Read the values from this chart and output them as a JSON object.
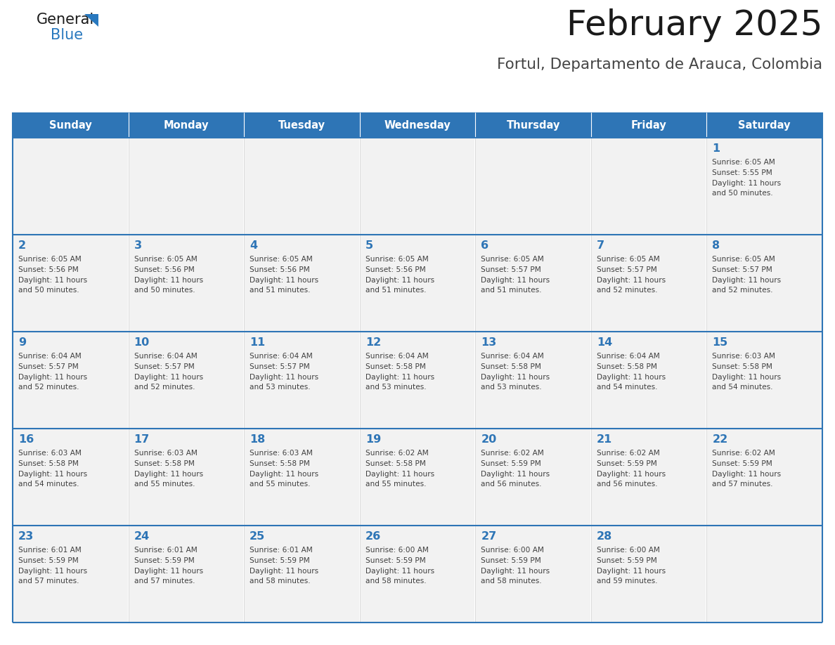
{
  "title": "February 2025",
  "subtitle": "Fortul, Departamento de Arauca, Colombia",
  "header_bg": "#2E75B6",
  "header_text_color": "#FFFFFF",
  "cell_bg": "#F2F2F2",
  "day_number_color": "#2E75B6",
  "text_color": "#404040",
  "border_color": "#2E75B6",
  "days_of_week": [
    "Sunday",
    "Monday",
    "Tuesday",
    "Wednesday",
    "Thursday",
    "Friday",
    "Saturday"
  ],
  "weeks": [
    [
      {
        "day": null,
        "info": null
      },
      {
        "day": null,
        "info": null
      },
      {
        "day": null,
        "info": null
      },
      {
        "day": null,
        "info": null
      },
      {
        "day": null,
        "info": null
      },
      {
        "day": null,
        "info": null
      },
      {
        "day": 1,
        "info": "Sunrise: 6:05 AM\nSunset: 5:55 PM\nDaylight: 11 hours\nand 50 minutes."
      }
    ],
    [
      {
        "day": 2,
        "info": "Sunrise: 6:05 AM\nSunset: 5:56 PM\nDaylight: 11 hours\nand 50 minutes."
      },
      {
        "day": 3,
        "info": "Sunrise: 6:05 AM\nSunset: 5:56 PM\nDaylight: 11 hours\nand 50 minutes."
      },
      {
        "day": 4,
        "info": "Sunrise: 6:05 AM\nSunset: 5:56 PM\nDaylight: 11 hours\nand 51 minutes."
      },
      {
        "day": 5,
        "info": "Sunrise: 6:05 AM\nSunset: 5:56 PM\nDaylight: 11 hours\nand 51 minutes."
      },
      {
        "day": 6,
        "info": "Sunrise: 6:05 AM\nSunset: 5:57 PM\nDaylight: 11 hours\nand 51 minutes."
      },
      {
        "day": 7,
        "info": "Sunrise: 6:05 AM\nSunset: 5:57 PM\nDaylight: 11 hours\nand 52 minutes."
      },
      {
        "day": 8,
        "info": "Sunrise: 6:05 AM\nSunset: 5:57 PM\nDaylight: 11 hours\nand 52 minutes."
      }
    ],
    [
      {
        "day": 9,
        "info": "Sunrise: 6:04 AM\nSunset: 5:57 PM\nDaylight: 11 hours\nand 52 minutes."
      },
      {
        "day": 10,
        "info": "Sunrise: 6:04 AM\nSunset: 5:57 PM\nDaylight: 11 hours\nand 52 minutes."
      },
      {
        "day": 11,
        "info": "Sunrise: 6:04 AM\nSunset: 5:57 PM\nDaylight: 11 hours\nand 53 minutes."
      },
      {
        "day": 12,
        "info": "Sunrise: 6:04 AM\nSunset: 5:58 PM\nDaylight: 11 hours\nand 53 minutes."
      },
      {
        "day": 13,
        "info": "Sunrise: 6:04 AM\nSunset: 5:58 PM\nDaylight: 11 hours\nand 53 minutes."
      },
      {
        "day": 14,
        "info": "Sunrise: 6:04 AM\nSunset: 5:58 PM\nDaylight: 11 hours\nand 54 minutes."
      },
      {
        "day": 15,
        "info": "Sunrise: 6:03 AM\nSunset: 5:58 PM\nDaylight: 11 hours\nand 54 minutes."
      }
    ],
    [
      {
        "day": 16,
        "info": "Sunrise: 6:03 AM\nSunset: 5:58 PM\nDaylight: 11 hours\nand 54 minutes."
      },
      {
        "day": 17,
        "info": "Sunrise: 6:03 AM\nSunset: 5:58 PM\nDaylight: 11 hours\nand 55 minutes."
      },
      {
        "day": 18,
        "info": "Sunrise: 6:03 AM\nSunset: 5:58 PM\nDaylight: 11 hours\nand 55 minutes."
      },
      {
        "day": 19,
        "info": "Sunrise: 6:02 AM\nSunset: 5:58 PM\nDaylight: 11 hours\nand 55 minutes."
      },
      {
        "day": 20,
        "info": "Sunrise: 6:02 AM\nSunset: 5:59 PM\nDaylight: 11 hours\nand 56 minutes."
      },
      {
        "day": 21,
        "info": "Sunrise: 6:02 AM\nSunset: 5:59 PM\nDaylight: 11 hours\nand 56 minutes."
      },
      {
        "day": 22,
        "info": "Sunrise: 6:02 AM\nSunset: 5:59 PM\nDaylight: 11 hours\nand 57 minutes."
      }
    ],
    [
      {
        "day": 23,
        "info": "Sunrise: 6:01 AM\nSunset: 5:59 PM\nDaylight: 11 hours\nand 57 minutes."
      },
      {
        "day": 24,
        "info": "Sunrise: 6:01 AM\nSunset: 5:59 PM\nDaylight: 11 hours\nand 57 minutes."
      },
      {
        "day": 25,
        "info": "Sunrise: 6:01 AM\nSunset: 5:59 PM\nDaylight: 11 hours\nand 58 minutes."
      },
      {
        "day": 26,
        "info": "Sunrise: 6:00 AM\nSunset: 5:59 PM\nDaylight: 11 hours\nand 58 minutes."
      },
      {
        "day": 27,
        "info": "Sunrise: 6:00 AM\nSunset: 5:59 PM\nDaylight: 11 hours\nand 58 minutes."
      },
      {
        "day": 28,
        "info": "Sunrise: 6:00 AM\nSunset: 5:59 PM\nDaylight: 11 hours\nand 59 minutes."
      },
      {
        "day": null,
        "info": null
      }
    ]
  ],
  "logo_general_color": "#1a1a1a",
  "logo_blue_color": "#2878BE",
  "logo_triangle_color": "#2878BE"
}
